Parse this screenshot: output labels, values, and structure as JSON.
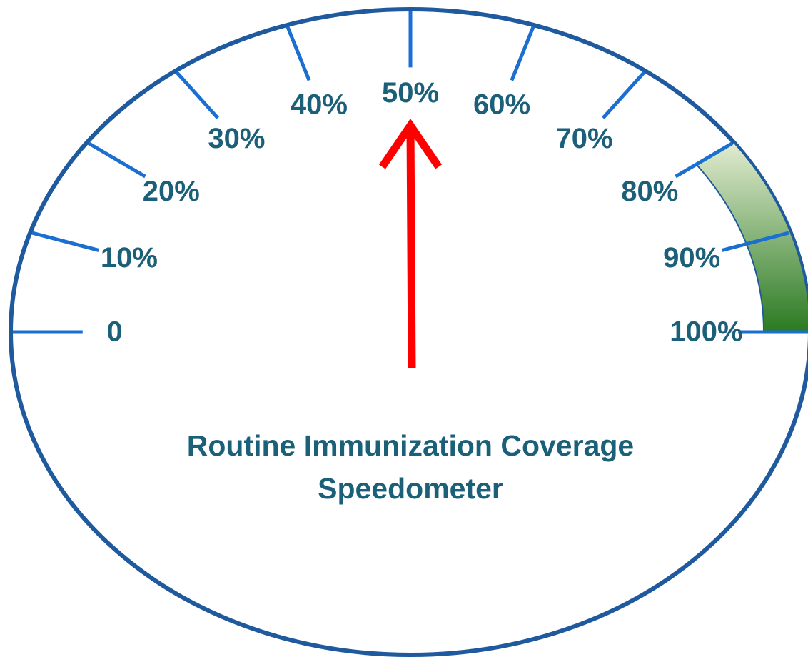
{
  "chart_data": {
    "type": "gauge",
    "title": "Routine Immunization Coverage Speedometer",
    "value": 50,
    "needle_color": "#ff0000",
    "ylim": [
      0,
      100
    ],
    "yticks": [
      0,
      {
        "value": 10,
        "label": "10%"
      },
      {
        "value": 20,
        "label": "20%"
      },
      {
        "value": 30,
        "label": "30%"
      },
      {
        "value": 40,
        "label": "40%"
      },
      {
        "value": 50,
        "label": "50%"
      },
      {
        "value": 60,
        "label": "60%"
      },
      {
        "value": 70,
        "label": "70%"
      },
      {
        "value": 80,
        "label": "80%"
      },
      {
        "value": 90,
        "label": "90%"
      },
      {
        "value": 100,
        "label": "100%"
      }
    ],
    "bands": [
      {
        "from": 80,
        "to": 100,
        "color": "#2a7a22"
      }
    ]
  }
}
